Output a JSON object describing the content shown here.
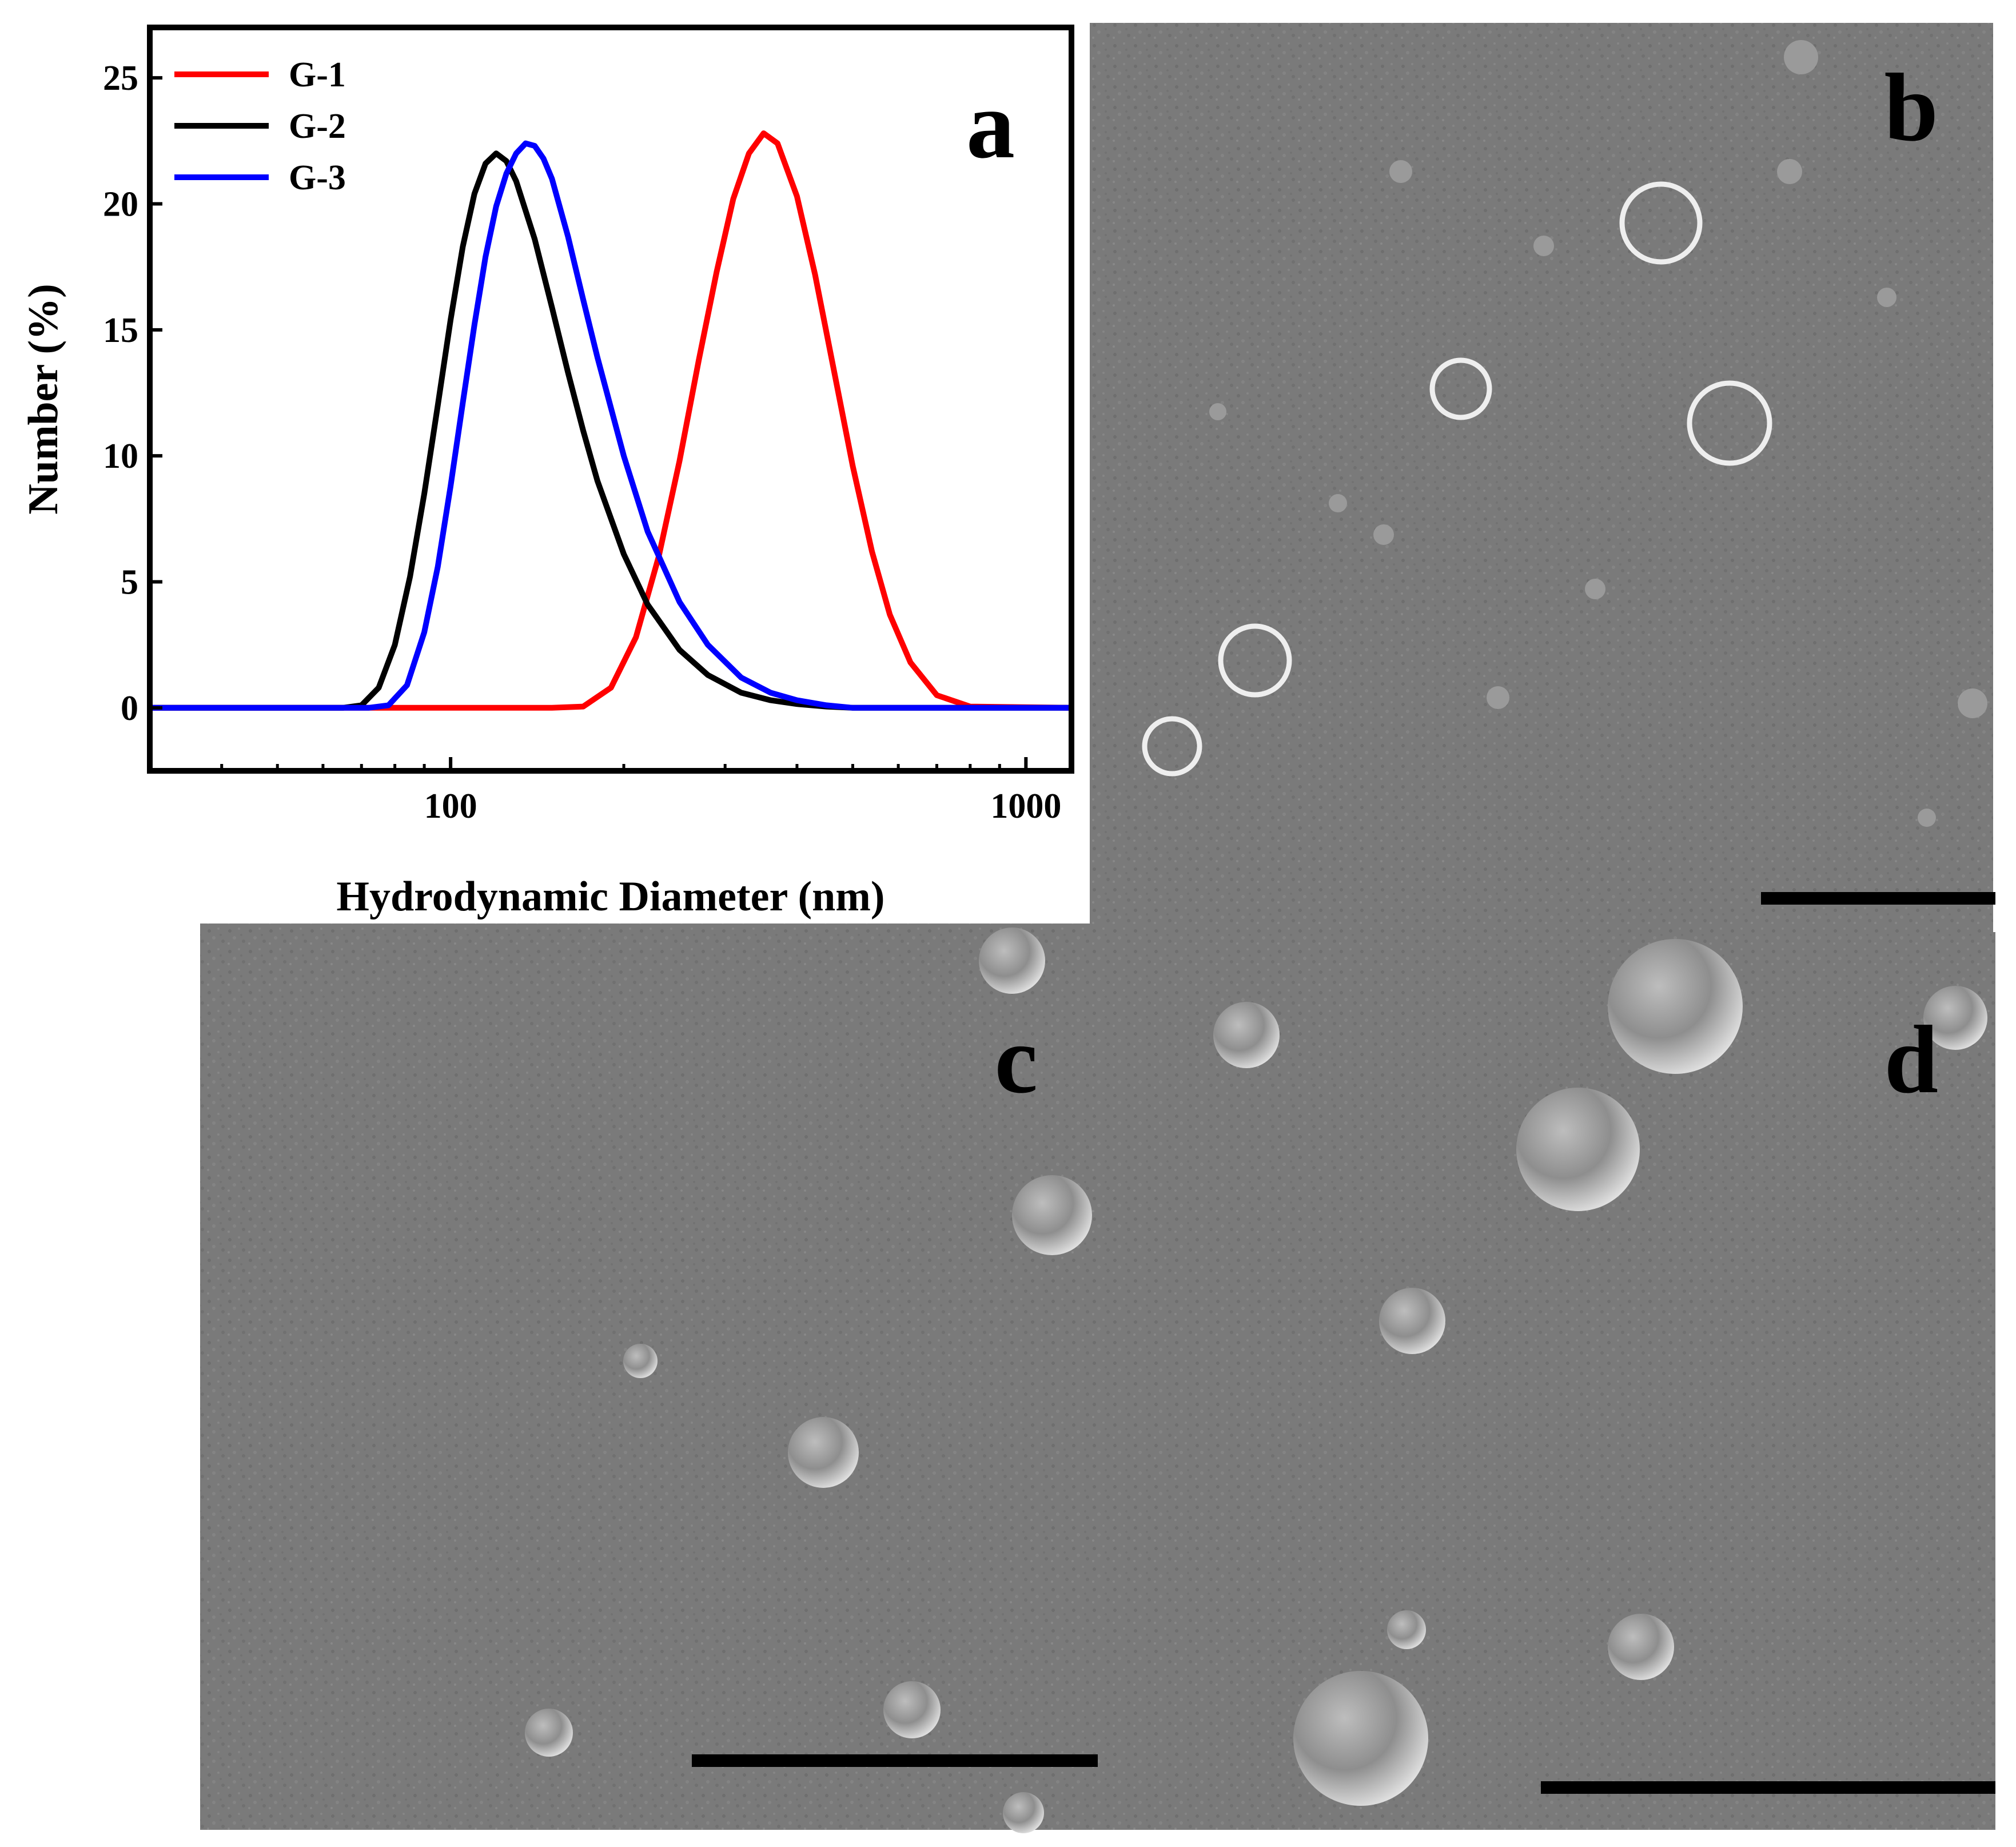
{
  "panels": {
    "a": "a",
    "b": "b",
    "c": "c",
    "d": "d"
  },
  "chart_data": {
    "type": "line",
    "title": "",
    "xlabel": "Hydrodynamic Diameter (nm)",
    "ylabel": "Number (%)",
    "xscale": "log",
    "xlim": [
      30,
      1200
    ],
    "ylim": [
      -2.5,
      27
    ],
    "x_ticks": [
      100,
      1000
    ],
    "x_tick_labels": [
      "100",
      "1000"
    ],
    "y_ticks": [
      0,
      5,
      10,
      15,
      20,
      25
    ],
    "y_tick_labels": [
      "0",
      "5",
      "10",
      "15",
      "20",
      "25"
    ],
    "grid": false,
    "legend_position": "top-left",
    "series": [
      {
        "name": "G-1",
        "color": "#ff0000",
        "x": [
          30,
          150,
          170,
          190,
          210,
          230,
          250,
          270,
          290,
          310,
          330,
          350,
          370,
          400,
          430,
          460,
          500,
          540,
          580,
          630,
          700,
          800,
          1200
        ],
        "y": [
          0,
          0,
          0.05,
          0.8,
          2.8,
          6.0,
          9.8,
          13.8,
          17.3,
          20.2,
          22.0,
          22.8,
          22.4,
          20.3,
          17.2,
          13.8,
          9.6,
          6.2,
          3.7,
          1.8,
          0.5,
          0.05,
          0
        ]
      },
      {
        "name": "G-2",
        "color": "#000000",
        "x": [
          30,
          65,
          70,
          75,
          80,
          85,
          90,
          95,
          100,
          105,
          110,
          115,
          120,
          125,
          130,
          140,
          150,
          160,
          170,
          180,
          200,
          220,
          250,
          280,
          320,
          360,
          400,
          450,
          500,
          1200
        ],
        "y": [
          0,
          0,
          0.1,
          0.8,
          2.5,
          5.2,
          8.5,
          12.0,
          15.4,
          18.3,
          20.4,
          21.6,
          22.0,
          21.7,
          20.9,
          18.6,
          15.9,
          13.3,
          11.0,
          9.0,
          6.1,
          4.1,
          2.3,
          1.3,
          0.6,
          0.3,
          0.15,
          0.05,
          0,
          0
        ]
      },
      {
        "name": "G-3",
        "color": "#0000ff",
        "x": [
          30,
          72,
          78,
          84,
          90,
          95,
          100,
          105,
          110,
          115,
          120,
          125,
          130,
          135,
          140,
          145,
          150,
          160,
          170,
          180,
          200,
          220,
          250,
          280,
          320,
          360,
          400,
          450,
          500,
          1200
        ],
        "y": [
          0,
          0,
          0.1,
          0.9,
          3.0,
          5.6,
          8.8,
          12.1,
          15.2,
          17.9,
          19.9,
          21.2,
          22.0,
          22.4,
          22.3,
          21.8,
          21.0,
          18.7,
          16.2,
          13.9,
          10.0,
          7.0,
          4.2,
          2.5,
          1.2,
          0.6,
          0.3,
          0.1,
          0,
          0
        ]
      }
    ]
  }
}
